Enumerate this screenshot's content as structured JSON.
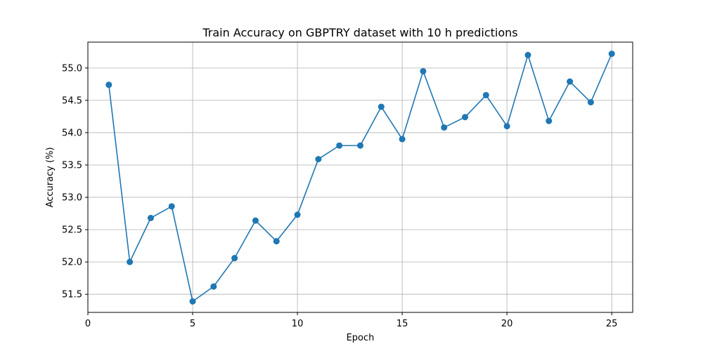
{
  "chart_data": {
    "type": "line",
    "title": "Train Accuracy on GBPTRY dataset with 10 h predictions",
    "xlabel": "Epoch",
    "ylabel": "Accuracy (%)",
    "xlim": [
      0,
      26
    ],
    "ylim": [
      51.22,
      55.4
    ],
    "xticks": [
      0,
      5,
      10,
      15,
      20,
      25
    ],
    "yticks": [
      51.5,
      52.0,
      52.5,
      53.0,
      53.5,
      54.0,
      54.5,
      55.0
    ],
    "grid": true,
    "color": "#1f77b4",
    "marker": "circle",
    "x": [
      1,
      2,
      3,
      4,
      5,
      6,
      7,
      8,
      9,
      10,
      11,
      12,
      13,
      14,
      15,
      16,
      17,
      18,
      19,
      20,
      21,
      22,
      23,
      24,
      25
    ],
    "y": [
      54.74,
      52.0,
      52.68,
      52.86,
      51.39,
      51.62,
      52.06,
      52.64,
      52.32,
      52.73,
      53.59,
      53.8,
      53.8,
      54.4,
      53.9,
      54.95,
      54.08,
      54.24,
      54.58,
      54.1,
      55.2,
      54.18,
      54.79,
      54.47,
      55.22
    ]
  }
}
